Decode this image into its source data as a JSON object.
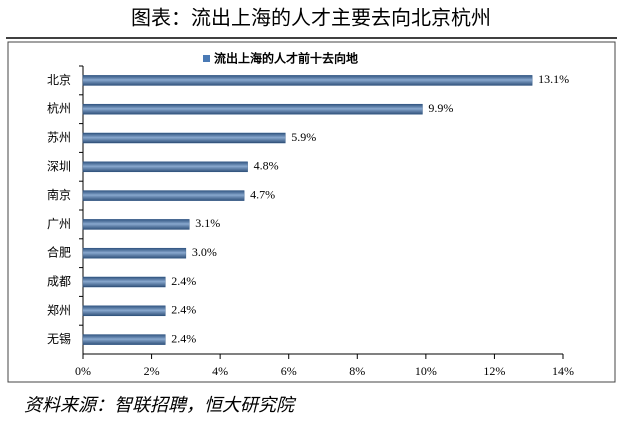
{
  "chart_data": {
    "type": "bar",
    "horizontal": true,
    "title": "图表：流出上海的人才主要去向北京杭州",
    "source": "资料来源：智联招聘，恒大研究院",
    "categories": [
      "北京",
      "杭州",
      "苏州",
      "深圳",
      "南京",
      "广州",
      "合肥",
      "成都",
      "郑州",
      "无锡"
    ],
    "series": [
      {
        "name": "流出上海的人才前十去向地",
        "color": "#4a7ab5",
        "values": [
          13.1,
          9.9,
          5.9,
          4.8,
          4.7,
          3.1,
          3.0,
          2.4,
          2.4,
          2.4
        ],
        "value_labels": [
          "13.1%",
          "9.9%",
          "5.9%",
          "4.8%",
          "4.7%",
          "3.1%",
          "3.0%",
          "2.4%",
          "2.4%",
          "2.4%"
        ]
      }
    ],
    "xlim": [
      0,
      14
    ],
    "xticks": [
      {
        "value": 0,
        "label": "0%"
      },
      {
        "value": 2,
        "label": "2%"
      },
      {
        "value": 4,
        "label": "4%"
      },
      {
        "value": 6,
        "label": "6%"
      },
      {
        "value": 8,
        "label": "8%"
      },
      {
        "value": 10,
        "label": "10%"
      },
      {
        "value": 12,
        "label": "12%"
      },
      {
        "value": 14,
        "label": "14%"
      }
    ],
    "legend": "top"
  }
}
